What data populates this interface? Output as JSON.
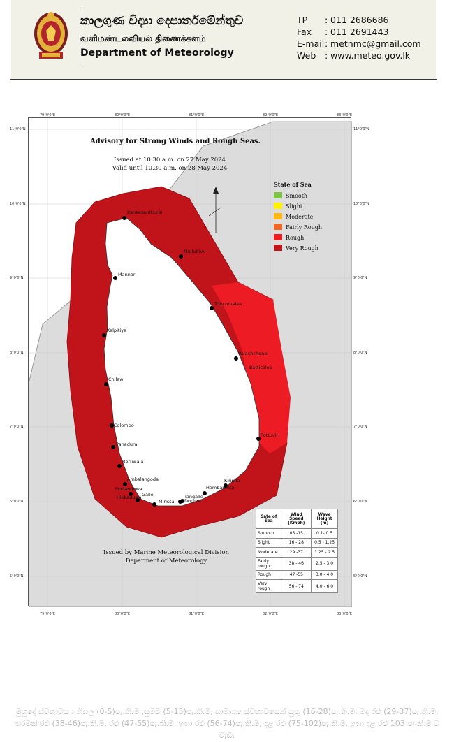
{
  "header": {
    "org_sinhala": "කාලගුණ විද්‍යා දෙපාර්තමේන්තුව",
    "org_tamil": "வளிமண்டலவியல் திணைக்களம்",
    "org_english": "Department of Meteorology",
    "contacts": [
      {
        "label": "TP",
        "value": "011 2686686"
      },
      {
        "label": "Fax",
        "value": "011 2691443"
      },
      {
        "label": "E-mail",
        "value": "metnmc@gmail.com"
      },
      {
        "label": "Web",
        "value": "www.meteo.gov.lk"
      }
    ]
  },
  "map": {
    "title": "Advisory for Strong Winds and Rough Seas.",
    "issued": "Issued at 10.30 a.m. on 27 May 2024",
    "valid": "Valid until 10.30 a.m. on 28 May 2024",
    "legend_title": "State of Sea",
    "legend": [
      {
        "label": "Smooth",
        "color": "#7dc443"
      },
      {
        "label": "Slight",
        "color": "#fff200"
      },
      {
        "label": "Moderate",
        "color": "#fdb813"
      },
      {
        "label": "Fairly Rough",
        "color": "#f26522"
      },
      {
        "label": "Rough",
        "color": "#ed1c24"
      },
      {
        "label": "Very Rough",
        "color": "#c1141a"
      }
    ],
    "issued_by_1": "Issued by Marine Meteorological Division",
    "issued_by_2": "Deparment of Meteorology",
    "lon_ticks": [
      "79°0'0\"E",
      "80°0'0\"E",
      "81°0'0\"E",
      "82°0'0\"E",
      "83°0'0\"E"
    ],
    "lat_ticks": [
      "11°0'0\"N",
      "10°0'0\"N",
      "9°0'0\"N",
      "8°0'0\"N",
      "7°0'0\"N",
      "6°0'0\"N",
      "5°0'0\"N"
    ],
    "locations": [
      "Kankesanthurai",
      "Mullaitivu",
      "Mannar",
      "Trincomalee",
      "Kalpitiya",
      "Valachchenai",
      "Batticaloa",
      "Chilaw",
      "Colombo",
      "Pottuvil",
      "Panadura",
      "Beruwala",
      "Ambalangoda",
      "Kirinda",
      "Hambantota",
      "Dodanduwa",
      "Galle",
      "Tangalle",
      "Dondra",
      "Mirissa",
      "Hikkaduwa",
      "Dondra"
    ],
    "sea_state_table": {
      "headers": [
        "Sate of Sea",
        "Wind Speed (Kmph)",
        "Wave Height (m)"
      ],
      "rows": [
        [
          "Smooth",
          "05 -15",
          "0.1- 0.5"
        ],
        [
          "Slight",
          "16 - 28",
          "0.5 - 1.25"
        ],
        [
          "Moderate",
          "29 -37",
          "1.25 - 2.5"
        ],
        [
          "Fairly rough",
          "38 - 46",
          "2.5 - 3.0"
        ],
        [
          "Rough",
          "47 -55",
          "3.0 - 4.0"
        ],
        [
          "Very rough",
          "56 - 74",
          "4.0 - 6.0"
        ]
      ]
    }
  },
  "footer_note": "මුහුදේ ස්වභාවය : නිසල (0-5)පැ.කි.මී ,සුමට (5-15)පැ.කි.මී, සාමාන්‍ය ස්වභාවයෙන් යුතු (16-28)පැ.කි.මී, මද රළු (29-37)පැ.කි.මී, තරමක් රළු (38-46)පැ.කි.මී, රළු (47-55)පැ.කි.මී, ඉතා රළු (56-74)පැ.කි.මී, දළ රළු (75-102)පැ.කි.මී, ඉතා දළ රළු 103 පැ.කි.මී ට වැඩි.",
  "colors": {
    "very_rough": "#c1141a",
    "rough": "#ed1c24",
    "land": "#ffffff",
    "outer_land": "#dcdcdc"
  }
}
